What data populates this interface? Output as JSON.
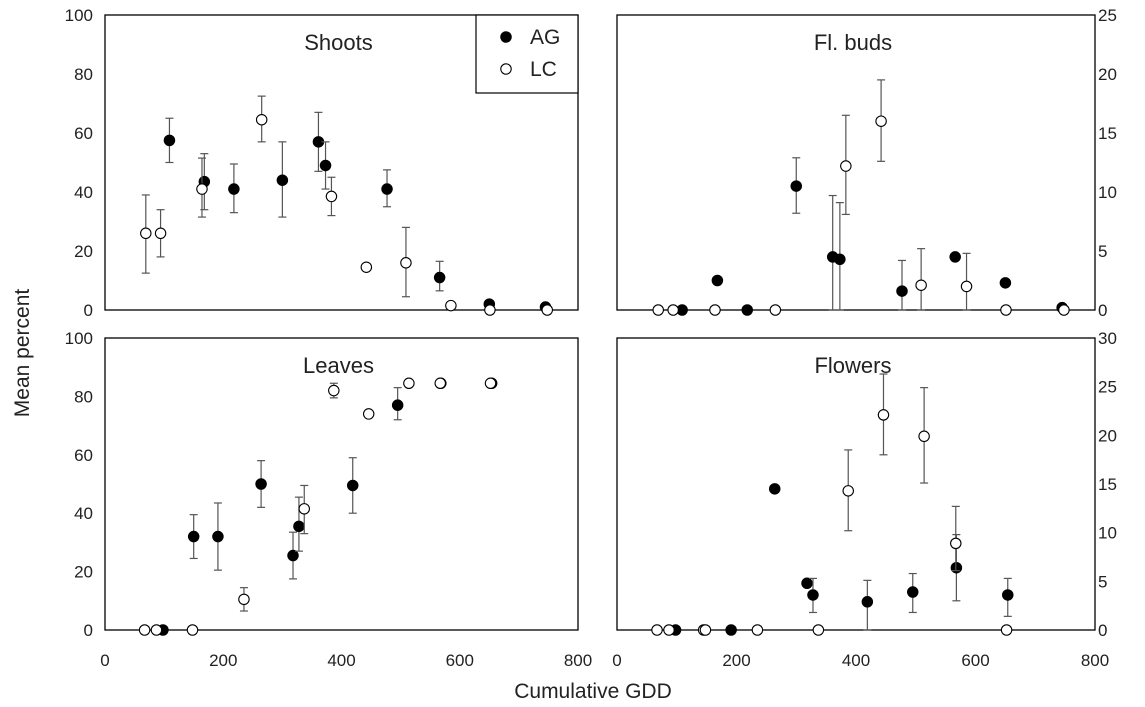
{
  "figure": {
    "ylabel": "Mean percent",
    "xlabel": "Cumulative GDD"
  },
  "legend": {
    "items": [
      {
        "label": "AG",
        "style": "filled"
      },
      {
        "label": "LC",
        "style": "open"
      }
    ]
  },
  "chart_data": [
    {
      "type": "scatter",
      "title": "Shoots",
      "xlim": [
        0,
        800
      ],
      "ylim": [
        0,
        100
      ],
      "xticks": [
        "0",
        "200",
        "400",
        "600",
        "800"
      ],
      "yticks": [
        "0",
        "20",
        "40",
        "60",
        "80",
        "100"
      ],
      "y_axis_side": "left",
      "show_x_tick_labels": false,
      "legend": true,
      "series": [
        {
          "name": "AG",
          "points": [
            {
              "x": 109,
              "y": 57.5,
              "lo": 50,
              "hi": 65
            },
            {
              "x": 168,
              "y": 43.5,
              "lo": 34,
              "hi": 53
            },
            {
              "x": 218,
              "y": 41,
              "lo": 33,
              "hi": 49.5
            },
            {
              "x": 300,
              "y": 44,
              "lo": 31.5,
              "hi": 57
            },
            {
              "x": 361,
              "y": 57,
              "lo": 47,
              "hi": 67
            },
            {
              "x": 373,
              "y": 49,
              "lo": 41,
              "hi": 57
            },
            {
              "x": 477,
              "y": 41,
              "lo": 35,
              "hi": 47.5
            },
            {
              "x": 566,
              "y": 11,
              "lo": 6.5,
              "hi": 16.5
            },
            {
              "x": 650,
              "y": 2
            },
            {
              "x": 745,
              "y": 1
            }
          ]
        },
        {
          "name": "LC",
          "points": [
            {
              "x": 69,
              "y": 26,
              "lo": 12.5,
              "hi": 39
            },
            {
              "x": 94,
              "y": 26,
              "lo": 18,
              "hi": 34
            },
            {
              "x": 164,
              "y": 41,
              "lo": 31.5,
              "hi": 51.5
            },
            {
              "x": 265,
              "y": 64.5,
              "lo": 57,
              "hi": 72.5
            },
            {
              "x": 383,
              "y": 38.5,
              "lo": 32,
              "hi": 45
            },
            {
              "x": 442,
              "y": 14.5
            },
            {
              "x": 509,
              "y": 16,
              "lo": 4.5,
              "hi": 28
            },
            {
              "x": 585,
              "y": 1.5
            },
            {
              "x": 651,
              "y": 0
            },
            {
              "x": 748,
              "y": 0
            }
          ]
        }
      ]
    },
    {
      "type": "scatter",
      "title": "Fl. buds",
      "xlim": [
        0,
        800
      ],
      "ylim": [
        0,
        25
      ],
      "xticks": [
        "0",
        "200",
        "400",
        "600",
        "800"
      ],
      "yticks": [
        "0",
        "5",
        "10",
        "15",
        "20",
        "25"
      ],
      "y_axis_side": "right",
      "show_x_tick_labels": false,
      "legend": false,
      "series": [
        {
          "name": "AG",
          "points": [
            {
              "x": 109,
              "y": 0
            },
            {
              "x": 168,
              "y": 2.5
            },
            {
              "x": 218,
              "y": 0
            },
            {
              "x": 300,
              "y": 10.5,
              "lo": 8.2,
              "hi": 12.9
            },
            {
              "x": 361,
              "y": 4.5,
              "lo": 0,
              "hi": 9.7
            },
            {
              "x": 373,
              "y": 4.3,
              "lo": 0,
              "hi": 9.1
            },
            {
              "x": 477,
              "y": 1.6,
              "lo": 0,
              "hi": 4.2
            },
            {
              "x": 566,
              "y": 4.5
            },
            {
              "x": 650,
              "y": 2.3
            },
            {
              "x": 745,
              "y": 0.2
            }
          ]
        },
        {
          "name": "LC",
          "points": [
            {
              "x": 69,
              "y": 0
            },
            {
              "x": 94,
              "y": 0
            },
            {
              "x": 164,
              "y": 0
            },
            {
              "x": 265,
              "y": 0
            },
            {
              "x": 383,
              "y": 12.2,
              "lo": 8.1,
              "hi": 16.5
            },
            {
              "x": 442,
              "y": 16,
              "lo": 12.6,
              "hi": 19.5
            },
            {
              "x": 509,
              "y": 2.1,
              "lo": 0,
              "hi": 5.2
            },
            {
              "x": 585,
              "y": 2,
              "lo": 0,
              "hi": 4.8
            },
            {
              "x": 651,
              "y": 0
            },
            {
              "x": 748,
              "y": 0
            }
          ]
        }
      ]
    },
    {
      "type": "scatter",
      "title": "Leaves",
      "xlim": [
        0,
        800
      ],
      "ylim": [
        0,
        100
      ],
      "xticks": [
        "0",
        "200",
        "400",
        "600",
        "800"
      ],
      "yticks": [
        "0",
        "20",
        "40",
        "60",
        "80",
        "100"
      ],
      "y_axis_side": "left",
      "show_x_tick_labels": true,
      "legend": false,
      "series": [
        {
          "name": "AG",
          "points": [
            {
              "x": 98,
              "y": 0
            },
            {
              "x": 150,
              "y": 32,
              "lo": 24.5,
              "hi": 39.5
            },
            {
              "x": 191,
              "y": 32,
              "lo": 20.5,
              "hi": 43.5
            },
            {
              "x": 264,
              "y": 50,
              "lo": 42,
              "hi": 58
            },
            {
              "x": 318,
              "y": 25.5,
              "lo": 17.5,
              "hi": 33.5
            },
            {
              "x": 328,
              "y": 35.5,
              "lo": 27,
              "hi": 45.5
            },
            {
              "x": 419,
              "y": 49.5,
              "lo": 40,
              "hi": 59
            },
            {
              "x": 495,
              "y": 77,
              "lo": 72,
              "hi": 83
            },
            {
              "x": 568,
              "y": 84.5
            },
            {
              "x": 654,
              "y": 84.5
            }
          ]
        },
        {
          "name": "LC",
          "points": [
            {
              "x": 67,
              "y": 0
            },
            {
              "x": 87,
              "y": 0
            },
            {
              "x": 148,
              "y": 0
            },
            {
              "x": 235,
              "y": 10.5,
              "lo": 6.5,
              "hi": 14.5
            },
            {
              "x": 337,
              "y": 41.5,
              "lo": 33,
              "hi": 49.5
            },
            {
              "x": 387,
              "y": 82,
              "lo": 79.5,
              "hi": 84.5
            },
            {
              "x": 446,
              "y": 74
            },
            {
              "x": 514,
              "y": 84.5
            },
            {
              "x": 567,
              "y": 84.5
            },
            {
              "x": 652,
              "y": 84.5
            }
          ]
        }
      ]
    },
    {
      "type": "scatter",
      "title": "Flowers",
      "xlim": [
        0,
        800
      ],
      "ylim": [
        0,
        30
      ],
      "xticks": [
        "0",
        "200",
        "400",
        "600",
        "800"
      ],
      "yticks": [
        "0",
        "5",
        "10",
        "15",
        "20",
        "25",
        "30"
      ],
      "y_axis_side": "right",
      "show_x_tick_labels": true,
      "legend": false,
      "series": [
        {
          "name": "AG",
          "points": [
            {
              "x": 98,
              "y": 0
            },
            {
              "x": 191,
              "y": 0
            },
            {
              "x": 264,
              "y": 14.5
            },
            {
              "x": 318,
              "y": 4.8
            },
            {
              "x": 328,
              "y": 3.6,
              "lo": 1.8,
              "hi": 5.3
            },
            {
              "x": 419,
              "y": 2.9,
              "lo": 0,
              "hi": 5.1
            },
            {
              "x": 495,
              "y": 3.9,
              "lo": 1.8,
              "hi": 5.8
            },
            {
              "x": 568,
              "y": 6.4,
              "lo": 3,
              "hi": 9.8
            },
            {
              "x": 654,
              "y": 3.6,
              "lo": 1.4,
              "hi": 5.3
            }
          ]
        },
        {
          "name": "LC",
          "points": [
            {
              "x": 67,
              "y": 0
            },
            {
              "x": 87,
              "y": 0
            },
            {
              "x": 145,
              "y": 0
            },
            {
              "x": 148,
              "y": 0
            },
            {
              "x": 235,
              "y": 0
            },
            {
              "x": 337,
              "y": 0
            },
            {
              "x": 387,
              "y": 14.3,
              "lo": 10.2,
              "hi": 18.5
            },
            {
              "x": 446,
              "y": 22.1,
              "lo": 18,
              "hi": 26.3
            },
            {
              "x": 514,
              "y": 19.9,
              "lo": 15.1,
              "hi": 24.9
            },
            {
              "x": 567,
              "y": 8.9,
              "lo": 6.1,
              "hi": 12.7
            },
            {
              "x": 652,
              "y": 0
            }
          ]
        }
      ]
    }
  ]
}
